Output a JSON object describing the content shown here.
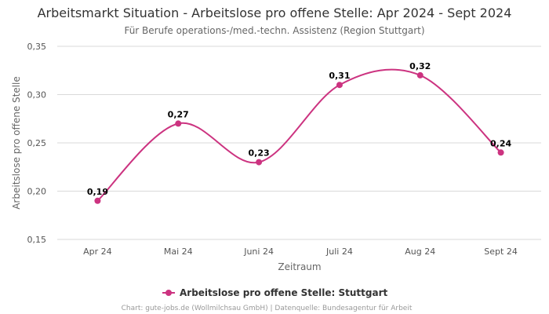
{
  "chart_data": {
    "type": "line",
    "title": "Arbeitsmarkt Situation - Arbeitslose pro offene Stelle: Apr 2024 - Sept 2024",
    "subtitle": "Für Berufe operations-/med.-techn. Assistenz (Region Stuttgart)",
    "xlabel": "Zeitraum",
    "ylabel": "Arbeitslose pro offene Stelle",
    "categories": [
      "Apr 24",
      "Mai 24",
      "Juni 24",
      "Juli 24",
      "Aug 24",
      "Sept 24"
    ],
    "series": [
      {
        "name": "Arbeitslose pro offene Stelle: Stuttgart",
        "values": [
          0.19,
          0.27,
          0.23,
          0.31,
          0.32,
          0.24
        ],
        "labels": [
          "0,19",
          "0,27",
          "0,23",
          "0,31",
          "0,32",
          "0,24"
        ]
      }
    ],
    "ylim": [
      0.15,
      0.35
    ],
    "yticks": [
      0.15,
      0.2,
      0.25,
      0.3,
      0.35
    ],
    "ytick_labels": [
      "0,15",
      "0,20",
      "0,25",
      "0,30",
      "0,35"
    ],
    "grid": true,
    "legend": "bottom-center",
    "color": "#cc3380",
    "credits": "Chart: gute-jobs.de (Wollmilchsau GmbH) | Datenquelle: Bundesagentur für Arbeit"
  }
}
